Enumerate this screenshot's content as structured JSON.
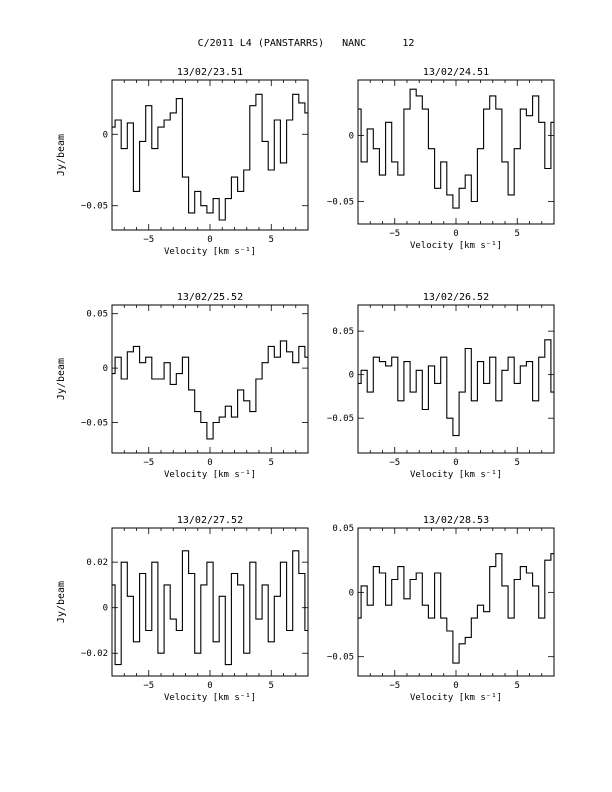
{
  "page": {
    "title": "C/2011 L4 (PANSTARRS)   NANC      12"
  },
  "chart_data": [
    {
      "type": "line",
      "title": "13/02/23.51",
      "xlabel": "Velocity [km s⁻¹]",
      "ylabel": "Jy/beam",
      "xlim": [
        -8,
        8
      ],
      "ylim": [
        -0.067,
        0.038
      ],
      "xticks": [
        -5,
        0,
        5
      ],
      "yticks": [
        0,
        -0.05
      ],
      "ytick_labels": [
        "0",
        "−0.05"
      ],
      "x": [
        -8,
        -7.5,
        -7,
        -6.5,
        -6,
        -5.5,
        -5,
        -4.5,
        -4,
        -3.5,
        -3,
        -2.5,
        -2,
        -1.5,
        -1,
        -0.5,
        0,
        0.5,
        1,
        1.5,
        2,
        2.5,
        3,
        3.5,
        4,
        4.5,
        5,
        5.5,
        6,
        6.5,
        7,
        7.5,
        8
      ],
      "values": [
        0.005,
        0.01,
        -0.01,
        0.008,
        -0.04,
        -0.005,
        0.02,
        -0.01,
        0.005,
        0.01,
        0.015,
        0.025,
        -0.03,
        -0.055,
        -0.04,
        -0.05,
        -0.055,
        -0.045,
        -0.06,
        -0.045,
        -0.03,
        -0.04,
        -0.025,
        0.02,
        0.028,
        -0.005,
        -0.025,
        0.01,
        -0.02,
        0.01,
        0.028,
        0.022,
        0.015
      ]
    },
    {
      "type": "line",
      "title": "13/02/24.51",
      "xlabel": "Velocity [km s⁻¹]",
      "ylabel": "",
      "xlim": [
        -8,
        8
      ],
      "ylim": [
        -0.067,
        0.042
      ],
      "xticks": [
        -5,
        0,
        5
      ],
      "yticks": [
        0,
        -0.05
      ],
      "ytick_labels": [
        "0",
        "−0.05"
      ],
      "x": [
        -8,
        -7.5,
        -7,
        -6.5,
        -6,
        -5.5,
        -5,
        -4.5,
        -4,
        -3.5,
        -3,
        -2.5,
        -2,
        -1.5,
        -1,
        -0.5,
        0,
        0.5,
        1,
        1.5,
        2,
        2.5,
        3,
        3.5,
        4,
        4.5,
        5,
        5.5,
        6,
        6.5,
        7,
        7.5,
        8
      ],
      "values": [
        0.02,
        -0.02,
        0.005,
        -0.01,
        -0.03,
        0.01,
        -0.02,
        -0.03,
        0.02,
        0.035,
        0.03,
        0.02,
        -0.01,
        -0.04,
        -0.02,
        -0.045,
        -0.055,
        -0.04,
        -0.03,
        -0.05,
        -0.01,
        0.02,
        0.03,
        0.02,
        -0.02,
        -0.045,
        -0.01,
        0.02,
        0.015,
        0.03,
        0.01,
        -0.025,
        0.01
      ]
    },
    {
      "type": "line",
      "title": "13/02/25.52",
      "xlabel": "Velocity [km s⁻¹]",
      "ylabel": "Jy/beam",
      "xlim": [
        -8,
        8
      ],
      "ylim": [
        -0.078,
        0.058
      ],
      "xticks": [
        -5,
        0,
        5
      ],
      "yticks": [
        0.05,
        0,
        -0.05
      ],
      "ytick_labels": [
        "0.05",
        "0",
        "−0.05"
      ],
      "x": [
        -8,
        -7.5,
        -7,
        -6.5,
        -6,
        -5.5,
        -5,
        -4.5,
        -4,
        -3.5,
        -3,
        -2.5,
        -2,
        -1.5,
        -1,
        -0.5,
        0,
        0.5,
        1,
        1.5,
        2,
        2.5,
        3,
        3.5,
        4,
        4.5,
        5,
        5.5,
        6,
        6.5,
        7,
        7.5,
        8
      ],
      "values": [
        -0.005,
        0.01,
        -0.01,
        0.015,
        0.02,
        0.005,
        0.01,
        -0.01,
        -0.01,
        0.005,
        -0.015,
        -0.005,
        0.01,
        -0.02,
        -0.04,
        -0.05,
        -0.065,
        -0.05,
        -0.045,
        -0.035,
        -0.045,
        -0.02,
        -0.03,
        -0.04,
        -0.01,
        0.005,
        0.02,
        0.01,
        0.025,
        0.015,
        0.005,
        0.02,
        0.01
      ]
    },
    {
      "type": "line",
      "title": "13/02/26.52",
      "xlabel": "Velocity [km s⁻¹]",
      "ylabel": "",
      "xlim": [
        -8,
        8
      ],
      "ylim": [
        -0.09,
        0.08
      ],
      "xticks": [
        -5,
        0,
        5
      ],
      "yticks": [
        0.05,
        0,
        -0.05
      ],
      "ytick_labels": [
        "0.05",
        "0",
        "−0.05"
      ],
      "x": [
        -8,
        -7.5,
        -7,
        -6.5,
        -6,
        -5.5,
        -5,
        -4.5,
        -4,
        -3.5,
        -3,
        -2.5,
        -2,
        -1.5,
        -1,
        -0.5,
        0,
        0.5,
        1,
        1.5,
        2,
        2.5,
        3,
        3.5,
        4,
        4.5,
        5,
        5.5,
        6,
        6.5,
        7,
        7.5,
        8
      ],
      "values": [
        -0.01,
        0.005,
        -0.02,
        0.02,
        0.015,
        0.01,
        0.02,
        -0.03,
        0.015,
        -0.02,
        0.005,
        -0.04,
        0.01,
        -0.01,
        0.02,
        -0.05,
        -0.07,
        -0.02,
        0.03,
        -0.03,
        0.015,
        -0.01,
        0.02,
        -0.03,
        0.005,
        0.02,
        -0.01,
        0.01,
        0.015,
        -0.03,
        0.02,
        0.04,
        -0.02
      ]
    },
    {
      "type": "line",
      "title": "13/02/27.52",
      "xlabel": "Velocity [km s⁻¹]",
      "ylabel": "Jy/beam",
      "xlim": [
        -8,
        8
      ],
      "ylim": [
        -0.03,
        0.035
      ],
      "xticks": [
        -5,
        0,
        5
      ],
      "yticks": [
        0.02,
        0,
        -0.02
      ],
      "ytick_labels": [
        "0.02",
        "0",
        "−0.02"
      ],
      "x": [
        -8,
        -7.5,
        -7,
        -6.5,
        -6,
        -5.5,
        -5,
        -4.5,
        -4,
        -3.5,
        -3,
        -2.5,
        -2,
        -1.5,
        -1,
        -0.5,
        0,
        0.5,
        1,
        1.5,
        2,
        2.5,
        3,
        3.5,
        4,
        4.5,
        5,
        5.5,
        6,
        6.5,
        7,
        7.5,
        8
      ],
      "values": [
        0.01,
        -0.025,
        0.02,
        0.005,
        -0.015,
        0.015,
        -0.01,
        0.02,
        -0.02,
        0.01,
        -0.005,
        -0.01,
        0.025,
        0.015,
        -0.02,
        0.01,
        0.02,
        -0.015,
        0.005,
        -0.025,
        0.015,
        0.01,
        -0.02,
        0.02,
        -0.005,
        0.01,
        -0.015,
        0.005,
        0.02,
        -0.01,
        0.025,
        0.015,
        -0.01
      ]
    },
    {
      "type": "line",
      "title": "13/02/28.53",
      "xlabel": "Velocity [km s⁻¹]",
      "ylabel": "",
      "xlim": [
        -8,
        8
      ],
      "ylim": [
        -0.065,
        0.05
      ],
      "xticks": [
        -5,
        0,
        5
      ],
      "yticks": [
        0.05,
        0,
        -0.05
      ],
      "ytick_labels": [
        "0.05",
        "0",
        "−0.05"
      ],
      "x": [
        -8,
        -7.5,
        -7,
        -6.5,
        -6,
        -5.5,
        -5,
        -4.5,
        -4,
        -3.5,
        -3,
        -2.5,
        -2,
        -1.5,
        -1,
        -0.5,
        0,
        0.5,
        1,
        1.5,
        2,
        2.5,
        3,
        3.5,
        4,
        4.5,
        5,
        5.5,
        6,
        6.5,
        7,
        7.5,
        8
      ],
      "values": [
        -0.02,
        0.005,
        -0.01,
        0.02,
        0.015,
        -0.01,
        0.01,
        0.02,
        -0.005,
        0.01,
        0.015,
        -0.01,
        -0.02,
        0.015,
        -0.02,
        -0.03,
        -0.055,
        -0.04,
        -0.035,
        -0.02,
        -0.01,
        -0.015,
        0.02,
        0.03,
        0.005,
        -0.02,
        0.01,
        0.02,
        0.015,
        0.005,
        -0.02,
        0.025,
        0.03
      ]
    }
  ]
}
